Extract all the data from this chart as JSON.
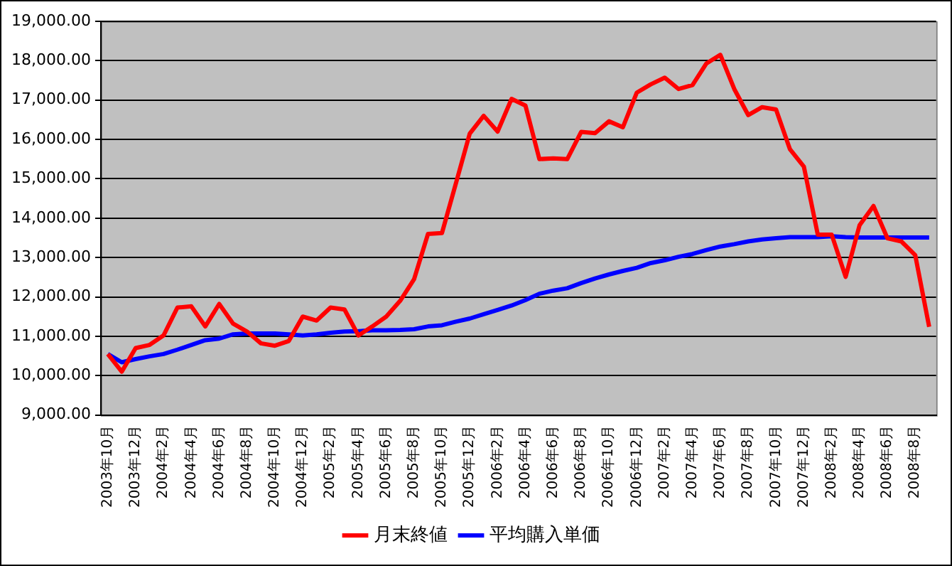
{
  "chart_data": {
    "type": "line",
    "categories": [
      "2003年10月",
      null,
      "2003年12月",
      null,
      "2004年2月",
      null,
      "2004年4月",
      null,
      "2004年6月",
      null,
      "2004年8月",
      null,
      "2004年10月",
      null,
      "2004年12月",
      null,
      "2005年2月",
      null,
      "2005年4月",
      null,
      "2005年6月",
      null,
      "2005年8月",
      null,
      "2005年10月",
      null,
      "2005年12月",
      null,
      "2006年2月",
      null,
      "2006年4月",
      null,
      "2006年6月",
      null,
      "2006年8月",
      null,
      "2006年10月",
      null,
      "2006年12月",
      null,
      "2007年2月",
      null,
      "2007年4月",
      null,
      "2007年6月",
      null,
      "2007年8月",
      null,
      "2007年10月",
      null,
      "2007年12月",
      null,
      "2008年2月",
      null,
      "2008年4月",
      null,
      "2008年6月",
      null,
      "2008年8月",
      null
    ],
    "series": [
      {
        "name": "月末終値",
        "color": "#ff0000",
        "values": [
          10550,
          10100,
          10700,
          10780,
          11020,
          11730,
          11760,
          11250,
          11820,
          11320,
          11120,
          10820,
          10760,
          10880,
          11500,
          11400,
          11730,
          11680,
          11020,
          11250,
          11500,
          11900,
          12450,
          13600,
          13620,
          14880,
          16150,
          16600,
          16200,
          17030,
          16860,
          15500,
          15520,
          15500,
          16190,
          16160,
          16460,
          16310,
          17190,
          17400,
          17570,
          17280,
          17380,
          17930,
          18150,
          17280,
          16620,
          16820,
          16760,
          15750,
          15310,
          13580,
          13580,
          12510,
          13820,
          14310,
          13490,
          13410,
          13060,
          11240
        ]
      },
      {
        "name": "平均購入単価",
        "color": "#0000ff",
        "values": [
          10550,
          10340,
          10420,
          10490,
          10550,
          10660,
          10780,
          10900,
          10940,
          11050,
          11070,
          11070,
          11070,
          11050,
          11020,
          11050,
          11090,
          11120,
          11130,
          11150,
          11150,
          11160,
          11180,
          11250,
          11280,
          11370,
          11450,
          11560,
          11670,
          11780,
          11920,
          12080,
          12160,
          12220,
          12350,
          12470,
          12570,
          12660,
          12740,
          12860,
          12930,
          13020,
          13090,
          13190,
          13280,
          13340,
          13410,
          13460,
          13490,
          13520,
          13520,
          13520,
          13540,
          13520,
          13510,
          13510,
          13510,
          13510,
          13510,
          13510
        ]
      }
    ],
    "ylim": [
      9000,
      19000
    ],
    "yticks": [
      {
        "value": 9000,
        "label": "9,000.00"
      },
      {
        "value": 10000,
        "label": "10,000.00"
      },
      {
        "value": 11000,
        "label": "11,000.00"
      },
      {
        "value": 12000,
        "label": "12,000.00"
      },
      {
        "value": 13000,
        "label": "13,000.00"
      },
      {
        "value": 14000,
        "label": "14,000.00"
      },
      {
        "value": 15000,
        "label": "15,000.00"
      },
      {
        "value": 16000,
        "label": "16,000.00"
      },
      {
        "value": 17000,
        "label": "17,000.00"
      },
      {
        "value": 18000,
        "label": "18,000.00"
      },
      {
        "value": 19000,
        "label": "19,000.00"
      }
    ],
    "grid": "y",
    "legend": "bottom",
    "marker": "none",
    "line_style": "solid"
  }
}
